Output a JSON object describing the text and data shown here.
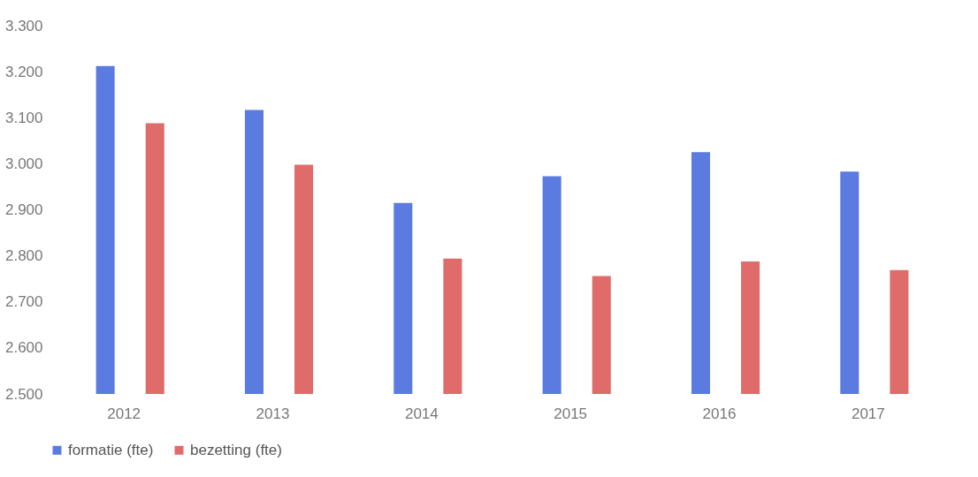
{
  "chart_data": {
    "type": "bar",
    "categories": [
      "2012",
      "2013",
      "2014",
      "2015",
      "2016",
      "2017"
    ],
    "series": [
      {
        "name": "formatie (fte)",
        "color": "#5b7be0",
        "values": [
          3212,
          3117,
          2915,
          2973,
          3025,
          2983
        ]
      },
      {
        "name": "bezetting (fte)",
        "color": "#e06b6b",
        "values": [
          3088,
          2998,
          2794,
          2756,
          2788,
          2769
        ]
      }
    ],
    "ylim": [
      2500,
      3300
    ],
    "yticks": [
      {
        "value": 2500,
        "label": "2.500"
      },
      {
        "value": 2600,
        "label": "2.600"
      },
      {
        "value": 2700,
        "label": "2.700"
      },
      {
        "value": 2800,
        "label": "2.800"
      },
      {
        "value": 2900,
        "label": "2.900"
      },
      {
        "value": 3000,
        "label": "3.000"
      },
      {
        "value": 3100,
        "label": "3.100"
      },
      {
        "value": 3200,
        "label": "3.200"
      },
      {
        "value": 3300,
        "label": "3.300"
      }
    ],
    "grid": false,
    "legend": "bottom"
  }
}
